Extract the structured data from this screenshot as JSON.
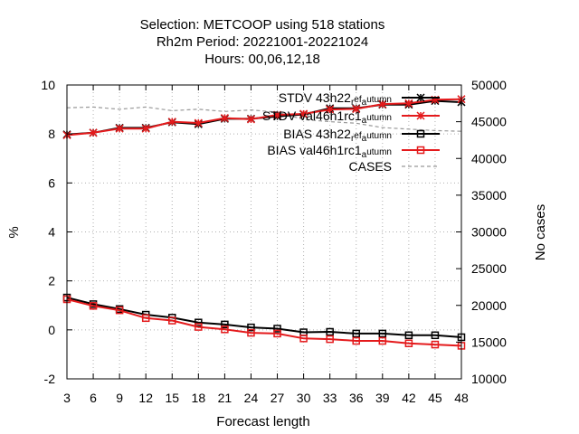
{
  "chart_data": {
    "type": "line",
    "title_lines": [
      "Selection: METCOOP using   518 stations",
      "Rh2m   Period: 20221001-20221024",
      "Hours:  00,06,12,18"
    ],
    "xlabel": "Forecast length",
    "ylabel": "%",
    "y2label": "No cases",
    "x": [
      3,
      6,
      9,
      12,
      15,
      18,
      21,
      24,
      27,
      30,
      33,
      36,
      39,
      42,
      45,
      48
    ],
    "xlim": [
      3,
      48
    ],
    "ylim": [
      -2,
      10
    ],
    "y2lim": [
      10000,
      50000
    ],
    "x_ticks": [
      "3",
      "6",
      "9",
      "12",
      "15",
      "18",
      "21",
      "24",
      "27",
      "30",
      "33",
      "36",
      "39",
      "42",
      "45",
      "48"
    ],
    "y_ticks": [
      "-2",
      "0",
      "2",
      "4",
      "6",
      "8",
      "10"
    ],
    "y2_ticks": [
      "10000",
      "15000",
      "20000",
      "25000",
      "30000",
      "35000",
      "40000",
      "45000",
      "50000"
    ],
    "grid": true,
    "legend_position": "top-right",
    "series": [
      {
        "name": "STDV 43h22_ref_autumn",
        "legend_parts": [
          "STDV 43h22",
          "r",
          "ef",
          "a",
          "utumn"
        ],
        "color": "#000000",
        "marker": "x-star",
        "axis": "left",
        "values": [
          7.98,
          8.05,
          8.25,
          8.25,
          8.48,
          8.4,
          8.62,
          8.62,
          8.72,
          8.8,
          9.05,
          9.05,
          9.2,
          9.2,
          9.35,
          9.3
        ]
      },
      {
        "name": "STDV val46h1rc1_autumn",
        "legend_parts": [
          "STDV val46h1rc1",
          "a",
          "utumn"
        ],
        "color": "#e41a1c",
        "marker": "x-star",
        "axis": "left",
        "values": [
          7.95,
          8.05,
          8.22,
          8.22,
          8.5,
          8.45,
          8.65,
          8.6,
          8.78,
          8.82,
          9.0,
          9.02,
          9.22,
          9.25,
          9.4,
          9.42
        ]
      },
      {
        "name": "BIAS 43h22_ref_autumn",
        "legend_parts": [
          "BIAS 43h22",
          "r",
          "ef",
          "a",
          "utumn"
        ],
        "color": "#000000",
        "marker": "square",
        "axis": "left",
        "values": [
          1.32,
          1.05,
          0.85,
          0.62,
          0.5,
          0.3,
          0.22,
          0.1,
          0.05,
          -0.1,
          -0.08,
          -0.15,
          -0.15,
          -0.22,
          -0.22,
          -0.3
        ]
      },
      {
        "name": "BIAS val46h1rc1_autumn",
        "legend_parts": [
          "BIAS val46h1rc1",
          "a",
          "utumn"
        ],
        "color": "#e41a1c",
        "marker": "square",
        "axis": "left",
        "values": [
          1.25,
          0.98,
          0.8,
          0.48,
          0.38,
          0.12,
          0.02,
          -0.12,
          -0.15,
          -0.35,
          -0.38,
          -0.45,
          -0.45,
          -0.55,
          -0.6,
          -0.65
        ]
      },
      {
        "name": "CASES",
        "legend_parts": [
          "CASES"
        ],
        "color": "#999999",
        "marker": "none",
        "dashed": true,
        "axis": "right",
        "values": [
          46900,
          47000,
          46700,
          47000,
          46500,
          46700,
          46400,
          46600,
          46300,
          45300,
          45000,
          44800,
          44200,
          44000,
          43800,
          43700
        ]
      }
    ]
  }
}
